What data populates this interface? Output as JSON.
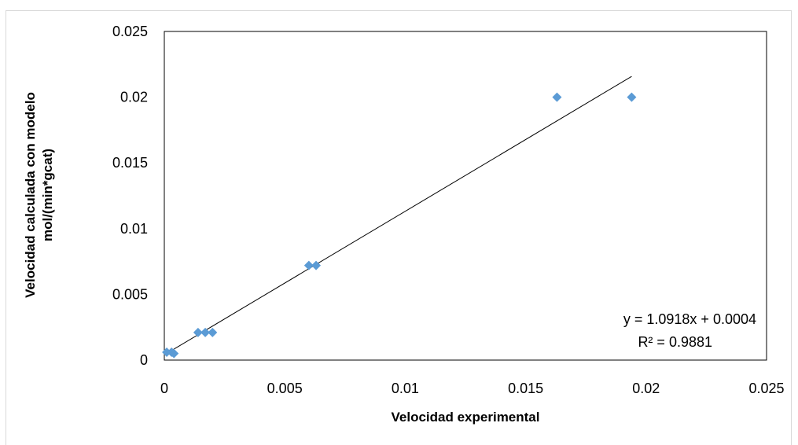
{
  "chart_data": {
    "type": "scatter",
    "title": "",
    "xlabel": "Velocidad experimental",
    "ylabel": [
      "Velocidad calculada con modelo",
      "mol/(min*gcat)"
    ],
    "xlim": [
      0,
      0.025
    ],
    "ylim": [
      0,
      0.025
    ],
    "x_ticks": [
      "0",
      "0.005",
      "0.01",
      "0.015",
      "0.02",
      "0.025"
    ],
    "y_ticks": [
      "0",
      "0.005",
      "0.01",
      "0.015",
      "0.02",
      "0.025"
    ],
    "grid": false,
    "series": [
      {
        "marker": "diamond",
        "color": "#5b9bd5",
        "x": [
          0.0001,
          0.0003,
          0.0004,
          0.0014,
          0.0017,
          0.002,
          0.006,
          0.0063,
          0.0163,
          0.0194
        ],
        "y": [
          0.0006,
          0.0006,
          0.0005,
          0.0021,
          0.0021,
          0.0021,
          0.0072,
          0.0072,
          0.02,
          0.02
        ]
      }
    ],
    "trendline": {
      "slope": 1.0918,
      "intercept": 0.0004,
      "x_range": [
        0,
        0.0194
      ],
      "color": "#000000"
    },
    "annotations": [
      "y = 1.0918x + 0.0004",
      "R² = 0.9881"
    ]
  }
}
